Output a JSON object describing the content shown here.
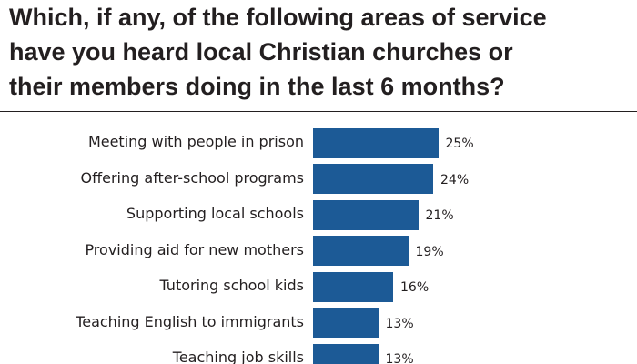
{
  "chart_data": {
    "type": "bar",
    "orientation": "horizontal",
    "title": "Which, if any, of the following areas of service\nhave you heard local Christian churches or\ntheir members doing in the last 6 months?",
    "categories": [
      "Meeting with people in prison",
      "Offering after-school programs",
      "Supporting local schools",
      "Providing aid for new mothers",
      "Tutoring school kids",
      "Teaching English to immigrants",
      "Teaching job skills"
    ],
    "values": [
      25,
      24,
      21,
      19,
      16,
      13,
      13
    ],
    "value_labels": [
      "25%",
      "24%",
      "21%",
      "19%",
      "16%",
      "13%",
      "13%"
    ],
    "bar_color": "#1c5a96",
    "grid": false
  }
}
